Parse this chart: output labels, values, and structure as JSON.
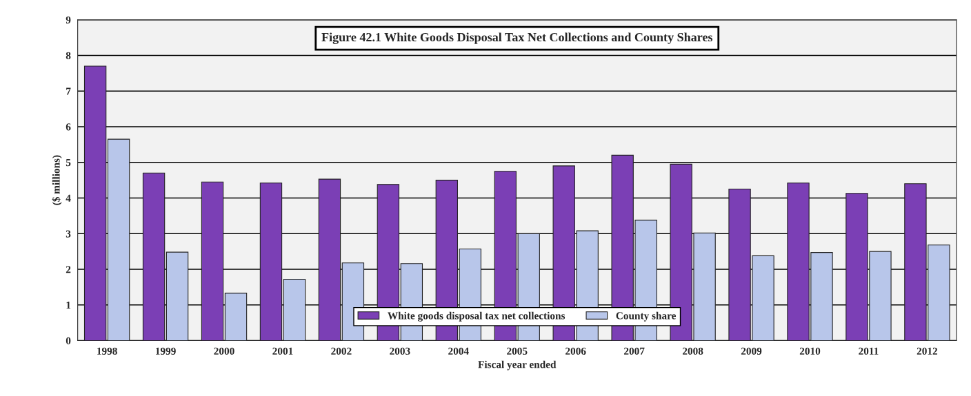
{
  "chart_data": {
    "type": "bar",
    "title": "Figure 42.1 White Goods Disposal Tax Net Collections and County Shares",
    "xlabel": "Fiscal year ended",
    "ylabel": "($ millions)",
    "categories": [
      "1998",
      "1999",
      "2000",
      "2001",
      "2002",
      "2003",
      "2004",
      "2005",
      "2006",
      "2007",
      "2008",
      "2009",
      "2010",
      "2011",
      "2012"
    ],
    "series": [
      {
        "name": "White goods disposal tax net collections",
        "color": "#7b3fb5",
        "values": [
          7.7,
          4.7,
          4.45,
          4.42,
          4.53,
          4.38,
          4.5,
          4.75,
          4.9,
          5.2,
          4.95,
          4.25,
          4.42,
          4.13,
          4.4
        ]
      },
      {
        "name": "County share",
        "color": "#b8c6ea",
        "values": [
          5.65,
          2.48,
          1.33,
          1.72,
          2.18,
          2.16,
          2.57,
          3.0,
          3.08,
          3.38,
          3.02,
          2.38,
          2.47,
          2.5,
          2.68
        ]
      }
    ],
    "ylim": [
      0,
      9
    ],
    "yticks": [
      0,
      1,
      2,
      3,
      4,
      5,
      6,
      7,
      8,
      9
    ],
    "grid": "y",
    "legend": "bottom"
  }
}
